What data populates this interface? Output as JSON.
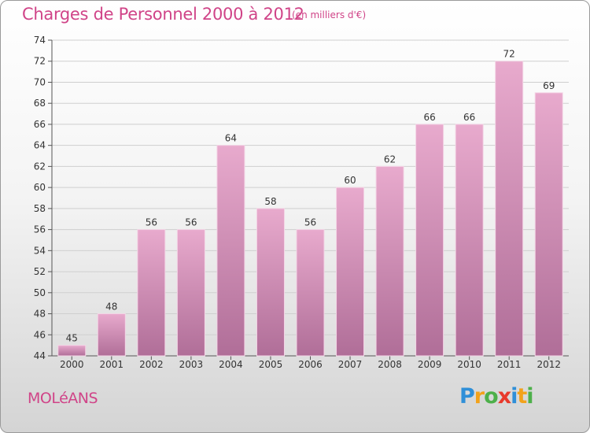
{
  "title": "Charges de Personnel 2000 à 2012",
  "subtitle": "(en milliers d'€)",
  "town": "MOLéANS",
  "logo": {
    "letters": [
      "P",
      "r",
      "o",
      "x",
      "i",
      "t",
      "i"
    ],
    "colors": [
      "#2f8fd8",
      "#f2a21b",
      "#4db04a",
      "#e8392b",
      "#2f8fd8",
      "#f2a21b",
      "#4db04a"
    ]
  },
  "colors": {
    "accent": "#d04488",
    "bar_top": "#e8aacd",
    "bar_bottom": "#b06e98"
  },
  "chart_data": {
    "type": "bar",
    "title": "Charges de Personnel 2000 à 2012",
    "subtitle": "(en milliers d'€)",
    "xlabel": "",
    "ylabel": "",
    "categories": [
      "2000",
      "2001",
      "2002",
      "2003",
      "2004",
      "2005",
      "2006",
      "2007",
      "2008",
      "2009",
      "2010",
      "2011",
      "2012"
    ],
    "values": [
      45,
      48,
      56,
      56,
      64,
      58,
      56,
      60,
      62,
      66,
      66,
      72,
      69
    ],
    "ylim": [
      44,
      74
    ],
    "yticks": [
      44,
      46,
      48,
      50,
      52,
      54,
      56,
      58,
      60,
      62,
      64,
      66,
      68,
      70,
      72,
      74
    ],
    "grid": true
  }
}
